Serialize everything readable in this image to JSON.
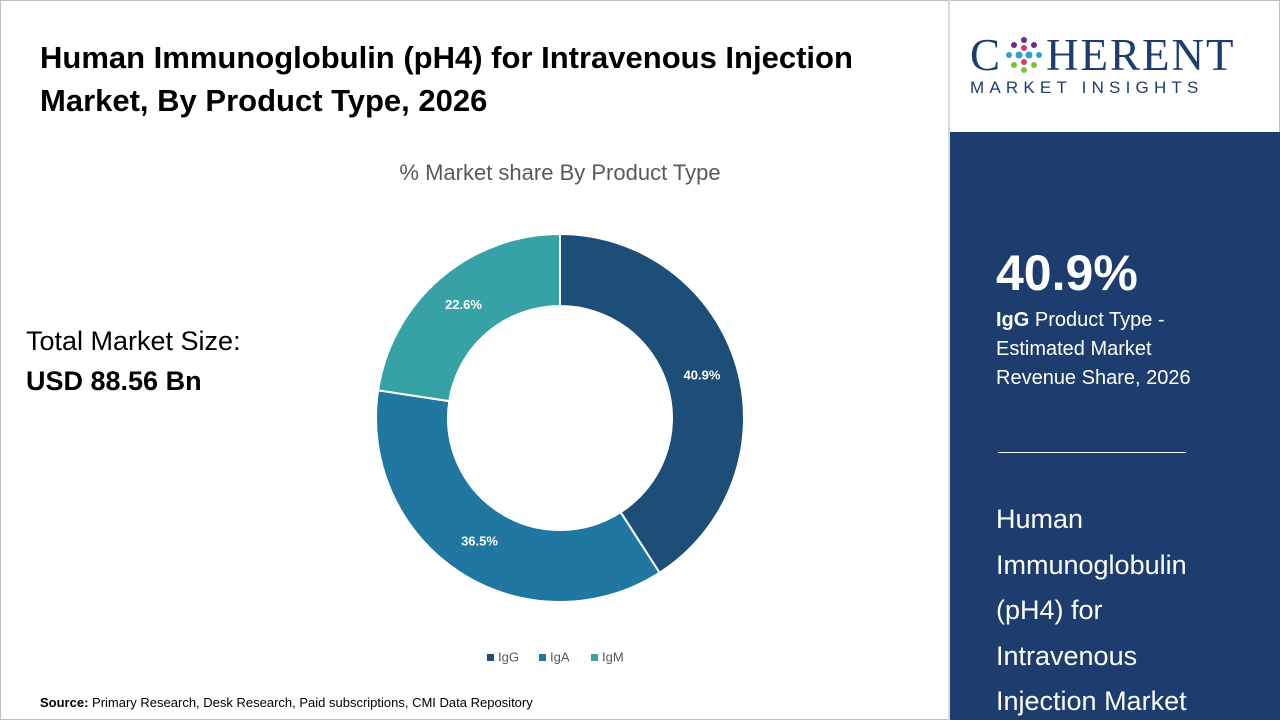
{
  "chart_data": {
    "type": "pie",
    "donut": true,
    "title": "Human Immunoglobulin (pH4) for Intravenous Injection Market, By Product Type, 2026",
    "subtitle": "% Market share By Product Type",
    "categories": [
      "IgG",
      "IgA",
      "IgM"
    ],
    "values": [
      40.9,
      36.5,
      22.6
    ],
    "value_labels": [
      "40.9%",
      "36.5%",
      "22.6%"
    ],
    "colors": [
      "#1c4e78",
      "#1f77a2",
      "#36a2a5"
    ],
    "legend": "bottom"
  },
  "market_size": {
    "label": "Total Market Size:",
    "value": "USD 88.56 Bn"
  },
  "source": {
    "label": "Source:",
    "text": "Primary Research, Desk Research, Paid subscriptions, CMI Data Repository"
  },
  "logo": {
    "name_start": "C",
    "name_end": "HERENT",
    "tagline": "MARKET INSIGHTS"
  },
  "sidebar": {
    "highlight": "40.9%",
    "segment": "IgG",
    "caption": "Product Type - Estimated Market Revenue Share, 2026",
    "market_name": "Human Immunoglobulin (pH4) for Intravenous Injection Market"
  }
}
